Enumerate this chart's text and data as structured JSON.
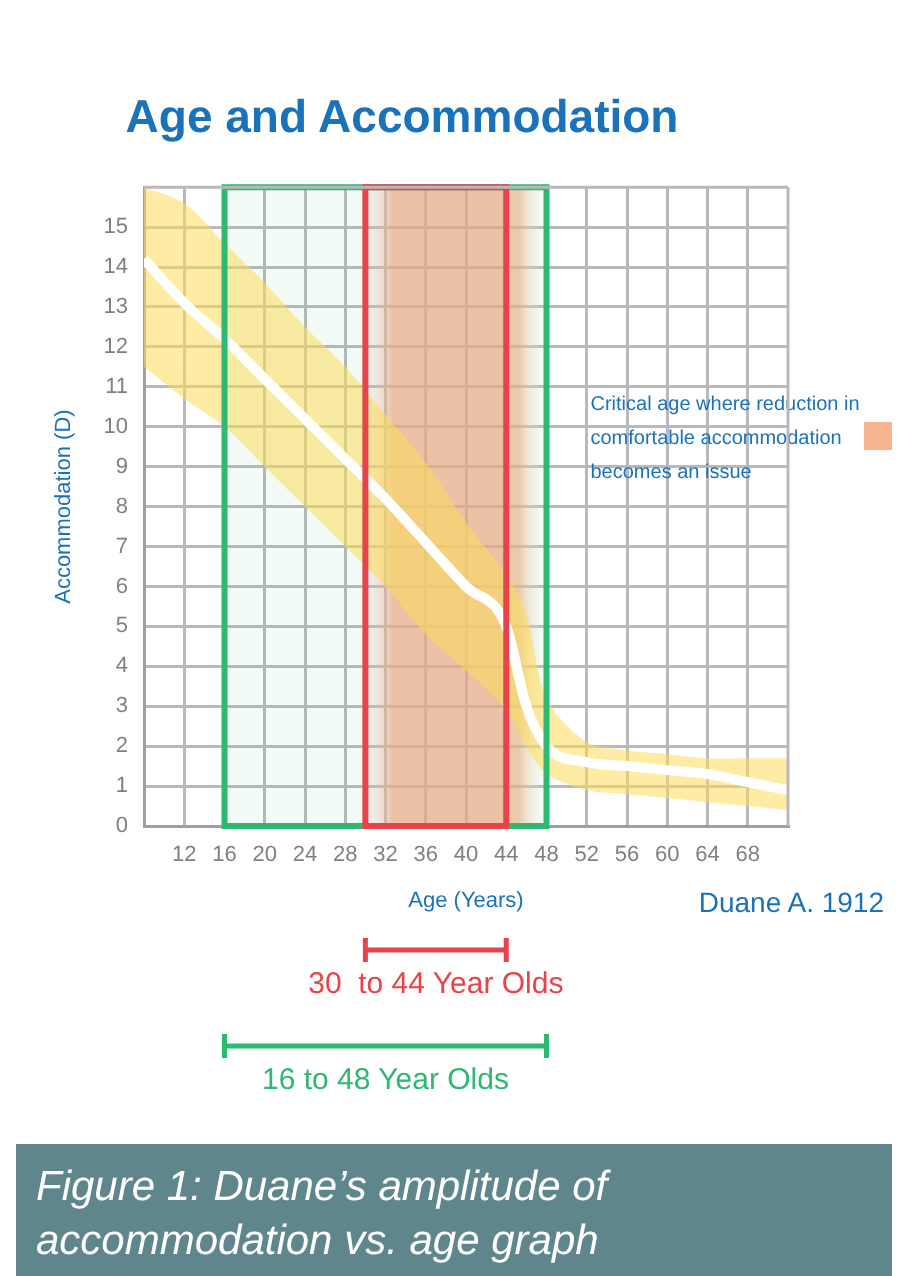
{
  "chart_data": {
    "type": "line",
    "title": "Age and Accommodation",
    "xlabel": "Age (Years)",
    "ylabel": "Accommodation (D)",
    "xlim": [
      8,
      72
    ],
    "xticks": [
      12,
      16,
      20,
      24,
      28,
      32,
      36,
      40,
      44,
      48,
      52,
      56,
      60,
      64,
      68
    ],
    "ylim": [
      0,
      16
    ],
    "yticks": [
      0,
      1,
      2,
      3,
      4,
      5,
      6,
      7,
      8,
      9,
      10,
      11,
      12,
      13,
      14,
      15
    ],
    "grid": true,
    "legend": false,
    "marker": "none",
    "series": [
      {
        "color": "#ffffff",
        "x": [
          8,
          12,
          16,
          20,
          24,
          28,
          32,
          36,
          40,
          44,
          46,
          48,
          52,
          56,
          60,
          64,
          68,
          72
        ],
        "values": [
          14.2,
          13.1,
          12.2,
          11.2,
          10.2,
          9.2,
          8.2,
          7.1,
          6.0,
          5.0,
          3.0,
          2.0,
          1.6,
          1.5,
          1.4,
          1.3,
          1.1,
          0.9
        ],
        "lower": [
          11.5,
          10.7,
          10.0,
          9.0,
          8.0,
          7.0,
          6.0,
          4.8,
          3.9,
          2.9,
          2.0,
          1.3,
          0.9,
          0.8,
          0.7,
          0.6,
          0.5,
          0.4
        ],
        "upper": [
          16,
          15.6,
          14.6,
          13.6,
          12.5,
          11.5,
          10.3,
          9.1,
          7.6,
          6.3,
          5.3,
          3.2,
          2.1,
          1.9,
          1.8,
          1.7,
          1.7,
          1.7
        ]
      }
    ],
    "bands": [
      {
        "axis": "x",
        "from": 30,
        "to": 48,
        "color": "#f6b48e",
        "label": "Critical age where reduction in comfortable accommodation becomes an issue"
      },
      {
        "axis": "x",
        "from": 16,
        "to": 48,
        "color": "#2eb872",
        "label": "16 to 48 Year Olds"
      },
      {
        "axis": "x",
        "from": 30,
        "to": 44,
        "color": "#e8424a",
        "label": "30  to 44 Year Olds"
      }
    ],
    "annotations": [
      "Duane A. 1912",
      "Figure 1: Duane’s amplitude of accommodation vs. age graph"
    ]
  }
}
